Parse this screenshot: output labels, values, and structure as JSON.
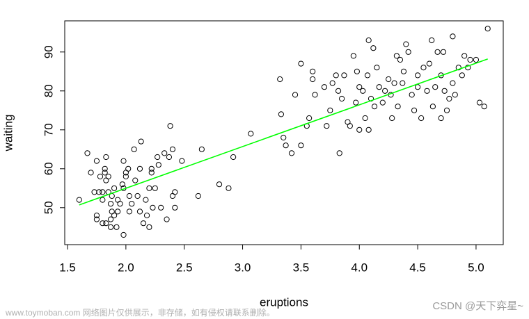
{
  "chart_data": {
    "type": "scatter",
    "x_label": "eruptions",
    "y_label": "waiting",
    "xlim": [
      1.476,
      5.233
    ],
    "ylim": [
      40.5,
      98.0
    ],
    "xticks": [
      1.5,
      2.0,
      2.5,
      3.0,
      3.5,
      4.0,
      4.5,
      5.0
    ],
    "yticks": [
      50,
      60,
      70,
      80,
      90
    ],
    "series": [
      {
        "color": "#000000",
        "x": [
          1.6,
          1.67,
          1.7,
          1.73,
          1.75,
          1.75,
          1.75,
          1.77,
          1.78,
          1.8,
          1.8,
          1.8,
          1.82,
          1.82,
          1.83,
          1.83,
          1.83,
          1.85,
          1.85,
          1.87,
          1.87,
          1.87,
          1.88,
          1.88,
          1.9,
          1.9,
          1.92,
          1.93,
          1.93,
          1.95,
          1.97,
          1.98,
          1.98,
          2.0,
          2.0,
          1.98,
          2.02,
          2.03,
          2.03,
          2.05,
          2.07,
          2.08,
          2.1,
          2.12,
          2.12,
          2.13,
          2.15,
          2.17,
          2.18,
          2.2,
          2.2,
          2.22,
          2.22,
          2.23,
          2.25,
          2.27,
          2.28,
          2.3,
          2.33,
          2.35,
          2.37,
          2.38,
          2.4,
          2.4,
          2.42,
          2.42,
          2.48,
          2.62,
          2.65,
          2.8,
          2.88,
          2.92,
          3.07,
          3.32,
          3.33,
          3.35,
          3.37,
          3.42,
          3.45,
          3.5,
          3.5,
          3.55,
          3.57,
          3.6,
          3.6,
          3.62,
          3.7,
          3.72,
          3.75,
          3.77,
          3.8,
          3.82,
          3.83,
          3.85,
          3.87,
          3.9,
          3.92,
          3.95,
          3.97,
          3.98,
          4.0,
          4.0,
          4.03,
          4.05,
          4.07,
          4.08,
          4.08,
          4.1,
          4.12,
          4.13,
          4.15,
          4.17,
          4.2,
          4.22,
          4.25,
          4.27,
          4.28,
          4.3,
          4.32,
          4.33,
          4.35,
          4.37,
          4.38,
          4.4,
          4.42,
          4.45,
          4.47,
          4.5,
          4.5,
          4.53,
          4.55,
          4.58,
          4.6,
          4.62,
          4.63,
          4.65,
          4.67,
          4.7,
          4.7,
          4.72,
          4.73,
          4.75,
          4.77,
          4.8,
          4.8,
          4.82,
          4.85,
          4.88,
          4.9,
          4.93,
          4.95,
          5.0,
          5.03,
          5.07,
          5.1
        ],
        "values": [
          52,
          64,
          59,
          54,
          62,
          48,
          47,
          54,
          58,
          52,
          46,
          54,
          60,
          59,
          63,
          57,
          46,
          58,
          54,
          51,
          47,
          45,
          53,
          49,
          55,
          48,
          45,
          49,
          52,
          51,
          56,
          55,
          62,
          59,
          58,
          43,
          60,
          49,
          53,
          51,
          65,
          57,
          53,
          49,
          60,
          67,
          46,
          52,
          48,
          55,
          45,
          59,
          60,
          50,
          55,
          63,
          61,
          50,
          64,
          47,
          63,
          71,
          53,
          65,
          54,
          50,
          62,
          53,
          65,
          56,
          55,
          63,
          69,
          83,
          74,
          68,
          66,
          64,
          79,
          66,
          87,
          71,
          73,
          83,
          85,
          79,
          81,
          71,
          75,
          82,
          84,
          80,
          64,
          78,
          84,
          72,
          71,
          89,
          77,
          85,
          70,
          81,
          80,
          73,
          84,
          70,
          93,
          78,
          91,
          76,
          86,
          81,
          77,
          80,
          83,
          79,
          73,
          82,
          89,
          76,
          88,
          82,
          85,
          92,
          90,
          79,
          75,
          84,
          81,
          73,
          86,
          80,
          87,
          93,
          76,
          81,
          90,
          84,
          73,
          90,
          80,
          75,
          78,
          94,
          82,
          79,
          86,
          84,
          89,
          86,
          88,
          88,
          77,
          76,
          96
        ]
      }
    ],
    "regression_line": {
      "color": "#00ff00",
      "x": [
        1.6,
        5.1
      ],
      "values": [
        50.7,
        88.2
      ]
    }
  },
  "watermark": {
    "site": "www.toymoban.com 网络图片仅供展示，非存储，如有侵权请联系删除。",
    "author": "CSDN @天下弈星~"
  }
}
